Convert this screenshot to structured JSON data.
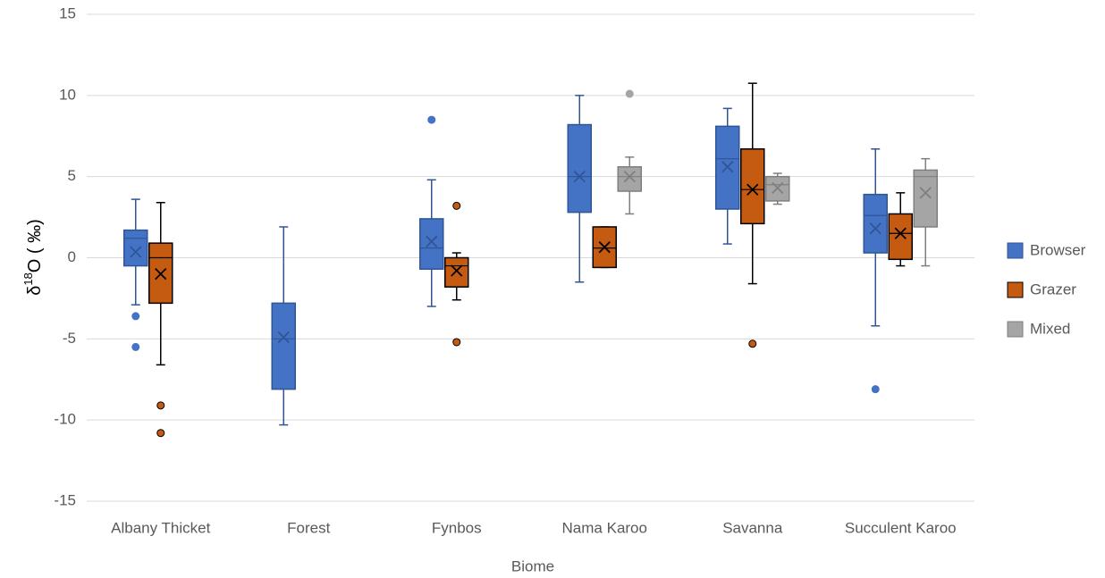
{
  "chart_data": {
    "type": "box",
    "x_label": "Biome",
    "y_label": {
      "prefix": "δ",
      "sup": "18",
      "suffix": "O ( ‰)"
    },
    "categories": [
      "Albany Thicket",
      "Forest",
      "Fynbos",
      "Nama Karoo",
      "Savanna",
      "Succulent Karoo"
    ],
    "ylim": [
      -15,
      15
    ],
    "yticks": [
      -15,
      -10,
      -5,
      0,
      5,
      10,
      15
    ],
    "grid": true,
    "legend": "right",
    "series": [
      {
        "name": "Browser",
        "color": "#4472c4",
        "edge_color": "#2f5597",
        "min": [
          -2.9,
          -10.3,
          -3.0,
          -1.5,
          0.85,
          -4.2
        ],
        "q1": [
          -0.5,
          -8.1,
          -0.7,
          2.8,
          3.0,
          0.3
        ],
        "median": [
          1.2,
          -5.0,
          0.6,
          5.0,
          6.1,
          2.6
        ],
        "q3": [
          1.7,
          -2.8,
          2.4,
          8.2,
          8.1,
          3.9
        ],
        "max": [
          3.6,
          1.9,
          4.8,
          10.0,
          9.2,
          6.7
        ],
        "mean": [
          0.35,
          -4.9,
          1.0,
          5.0,
          5.6,
          1.8
        ],
        "outliers": [
          [
            -3.6,
            -5.5
          ],
          [],
          [
            8.5
          ],
          [],
          [],
          [
            -8.1
          ]
        ]
      },
      {
        "name": "Grazer",
        "color": "#c55a11",
        "edge_color": "#000000",
        "min": [
          -6.6,
          null,
          -2.6,
          -0.6,
          -1.6,
          -0.5
        ],
        "q1": [
          -2.8,
          null,
          -1.8,
          -0.6,
          2.1,
          -0.1
        ],
        "median": [
          0.0,
          null,
          -0.5,
          0.6,
          4.2,
          1.5
        ],
        "q3": [
          0.9,
          null,
          0.0,
          1.9,
          6.7,
          2.7
        ],
        "max": [
          3.4,
          null,
          0.3,
          1.9,
          10.75,
          4.0
        ],
        "mean": [
          -1.0,
          null,
          -0.8,
          0.65,
          4.2,
          1.5
        ],
        "outliers": [
          [
            -9.1,
            -10.8
          ],
          [],
          [
            3.2,
            -5.2
          ],
          [],
          [
            -5.3
          ],
          []
        ]
      },
      {
        "name": "Mixed",
        "color": "#a5a5a5",
        "edge_color": "#7f7f7f",
        "min": [
          null,
          null,
          null,
          2.7,
          3.3,
          -0.5
        ],
        "q1": [
          null,
          null,
          null,
          4.1,
          3.5,
          1.9
        ],
        "median": [
          null,
          null,
          null,
          5.0,
          4.5,
          5.0
        ],
        "q3": [
          null,
          null,
          null,
          5.6,
          5.0,
          5.4
        ],
        "max": [
          null,
          null,
          null,
          6.2,
          5.2,
          6.1
        ],
        "mean": [
          null,
          null,
          null,
          5.0,
          4.3,
          4.0
        ],
        "outliers": [
          [],
          [],
          [],
          [
            10.1
          ],
          [],
          []
        ]
      }
    ]
  }
}
